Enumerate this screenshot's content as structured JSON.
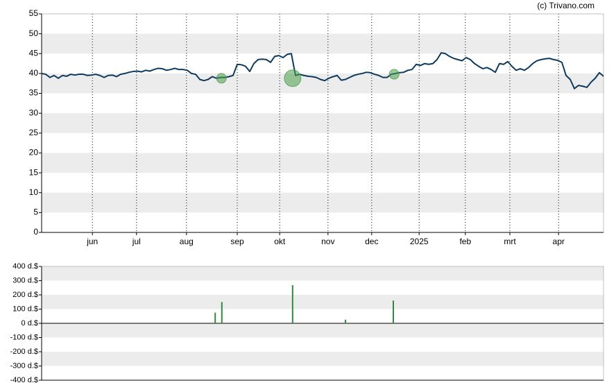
{
  "source": "(c) Trivano.com",
  "chart_data": [
    {
      "type": "line",
      "xlim": [
        0,
        135
      ],
      "xticks": [
        {
          "value": 12.2,
          "label": "jun"
        },
        {
          "value": 22.8,
          "label": "jul"
        },
        {
          "value": 34.8,
          "label": "aug"
        },
        {
          "value": 47,
          "label": "sep"
        },
        {
          "value": 57.2,
          "label": "okt"
        },
        {
          "value": 68.8,
          "label": "nov"
        },
        {
          "value": 79.3,
          "label": "dec"
        },
        {
          "value": 90.7,
          "label": "2025"
        },
        {
          "value": 101.8,
          "label": "feb"
        },
        {
          "value": 112.5,
          "label": "mrt"
        },
        {
          "value": 124.2,
          "label": "apr"
        }
      ],
      "ylim": [
        0,
        55
      ],
      "yticks": [
        0,
        5,
        10,
        15,
        20,
        25,
        30,
        35,
        40,
        45,
        50,
        55
      ],
      "grid": "bands",
      "color": "#0d3a5c",
      "values": [
        40,
        39.8,
        39,
        39.5,
        38.8,
        39.5,
        39.3,
        39.8,
        39.6,
        39.8,
        39.8,
        39.5,
        39.6,
        39.8,
        39.5,
        39,
        39.5,
        39.6,
        39.2,
        39.8,
        40,
        40.3,
        40.5,
        40.6,
        40.4,
        40.8,
        40.6,
        41,
        41.3,
        41.2,
        40.8,
        41,
        41.3,
        41,
        41,
        40.8,
        40,
        39.8,
        38.5,
        38.2,
        38.5,
        39.2,
        38.8,
        39,
        39,
        39.2,
        39.5,
        42.3,
        42.2,
        41.8,
        40.5,
        42.5,
        43.5,
        43.6,
        43.5,
        42.8,
        44.3,
        44.5,
        44,
        44.8,
        45,
        39.5,
        39.8,
        39.5,
        39.3,
        39.2,
        39,
        38.5,
        38.2,
        38.8,
        39.2,
        39.5,
        38.3,
        38.5,
        39,
        39.5,
        39.8,
        40,
        40.3,
        40.2,
        39.8,
        39.5,
        39,
        39,
        39.8,
        40,
        40.2,
        40.3,
        40.8,
        41,
        42.3,
        42,
        42.5,
        42.3,
        42.5,
        43.5,
        45.2,
        45,
        44.3,
        43.8,
        43.5,
        43.2,
        44,
        43.5,
        42.5,
        41.8,
        41.2,
        41.5,
        41,
        40.3,
        42.5,
        42.3,
        43,
        41.8,
        40.8,
        41.2,
        40.8,
        41.5,
        42.5,
        43.2,
        43.5,
        43.7,
        43.8,
        43.5,
        43.3,
        42.8,
        39.5,
        38.5,
        36.2,
        37,
        36.8,
        36.5,
        37.8,
        38.8,
        40.2,
        39.3
      ],
      "bubbles": {
        "color": "#4a9e4a",
        "x": [
          43.2,
          60.3,
          84.7
        ],
        "values": [
          38.8,
          38.8,
          39.8
        ],
        "sizes": [
          7,
          12,
          7
        ]
      }
    },
    {
      "type": "bar",
      "xlim": [
        0,
        135
      ],
      "ylim": [
        -400,
        400
      ],
      "yticks": [
        {
          "value": -400,
          "label": "-400 d.$"
        },
        {
          "value": -300,
          "label": "-300 d.$"
        },
        {
          "value": -200,
          "label": "-200 d.$"
        },
        {
          "value": -100,
          "label": "-100 d.$"
        },
        {
          "value": 0,
          "label": "0 d.$"
        },
        {
          "value": 100,
          "label": "100 d.$"
        },
        {
          "value": 200,
          "label": "200 d.$"
        },
        {
          "value": 300,
          "label": "300 d.$"
        },
        {
          "value": 400,
          "label": "400 d.$"
        }
      ],
      "grid": "bands",
      "color": "#2e8b3e",
      "x": [
        41.7,
        43.3,
        60.3,
        73,
        84.5
      ],
      "values": [
        75,
        150,
        268,
        25,
        160
      ]
    }
  ]
}
